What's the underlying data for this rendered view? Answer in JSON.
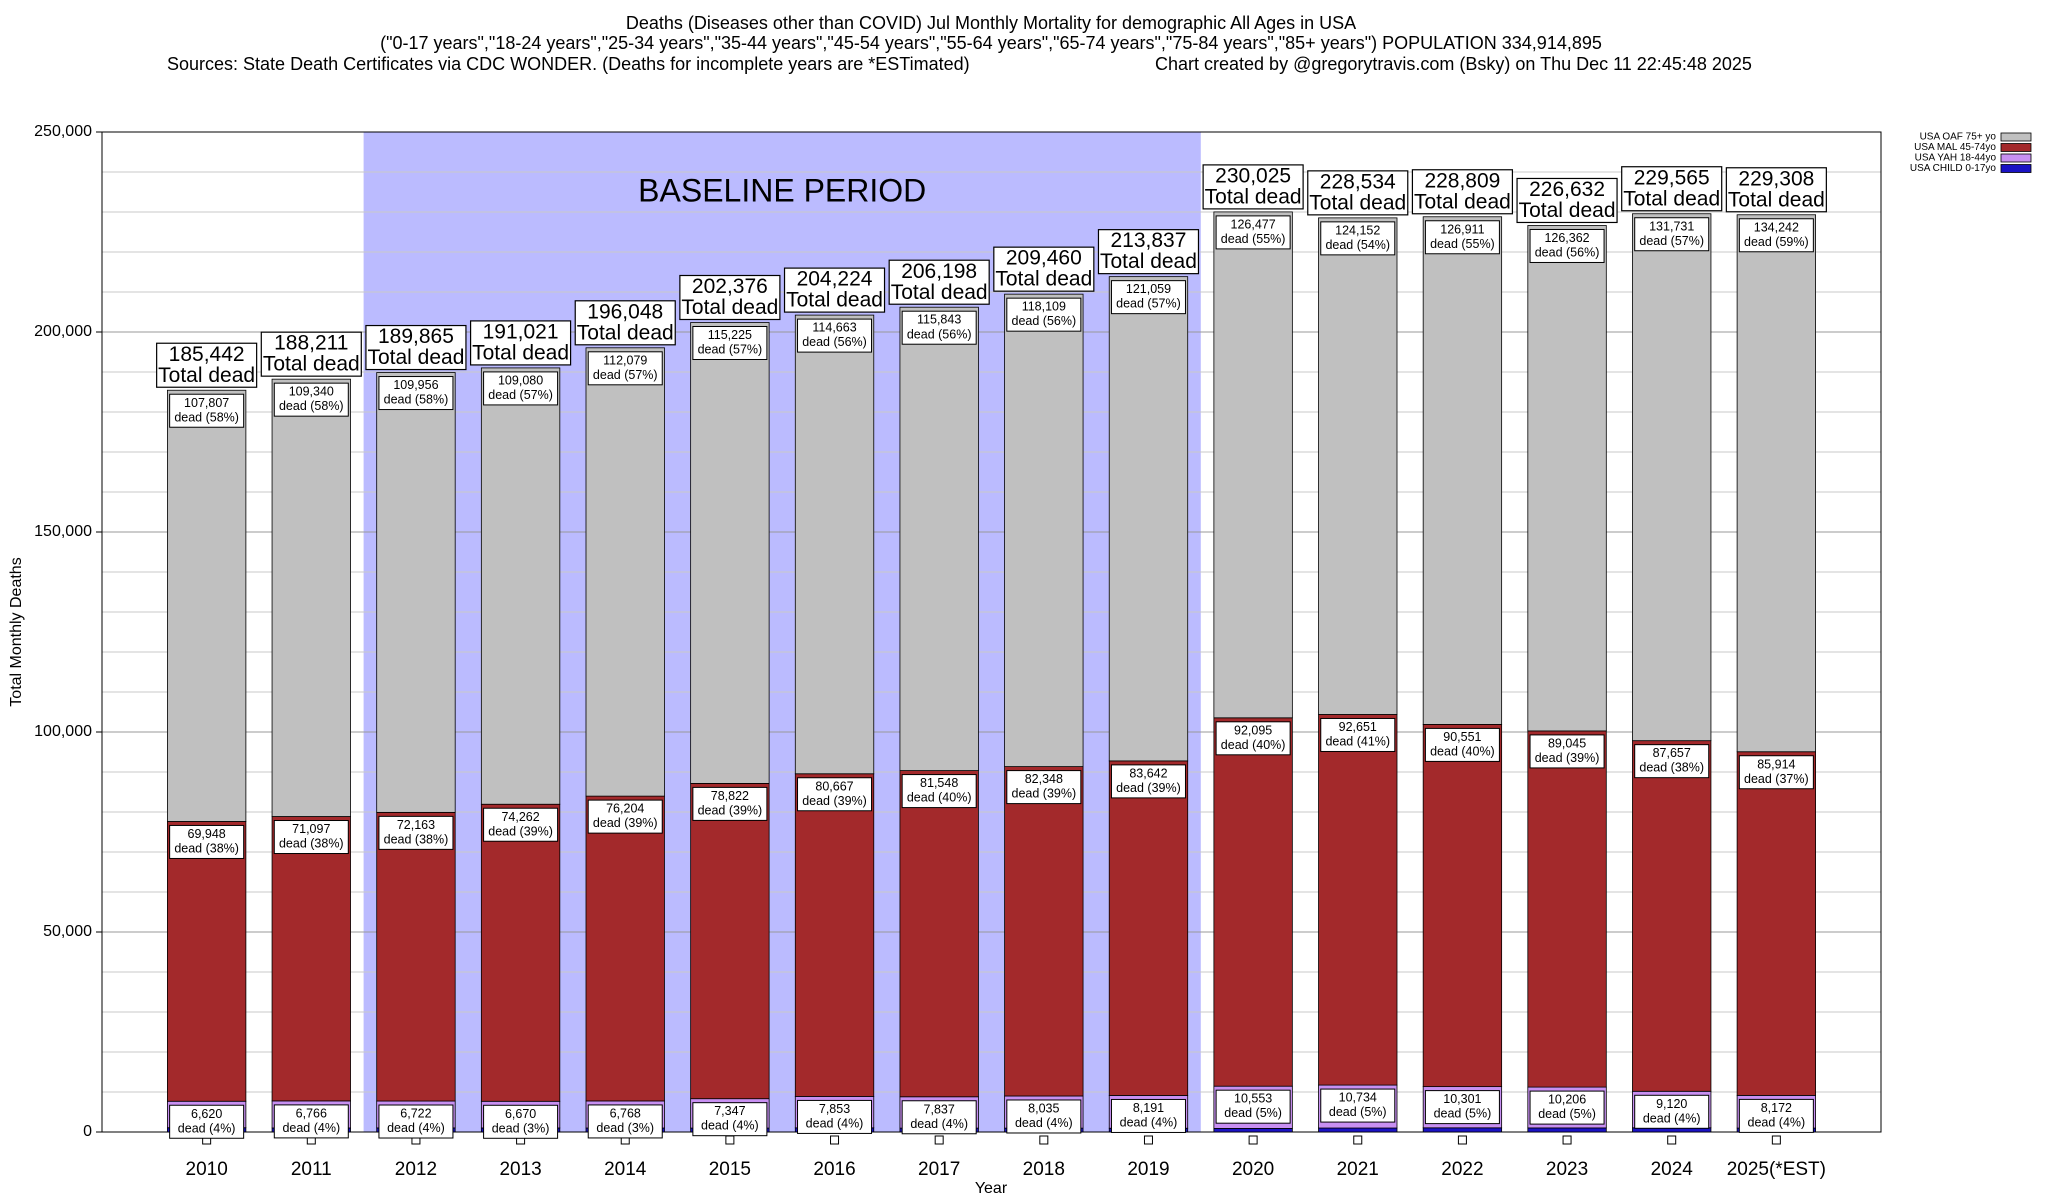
{
  "chart_data": {
    "type": "stacked_bar",
    "title": "Deaths (Diseases other than COVID) Jul Monthly Mortality for demographic All Ages in USA",
    "subtitle": "(\"0-17 years\",\"18-24 years\",\"25-34 years\",\"35-44 years\",\"45-54 years\",\"55-64 years\",\"65-74 years\",\"75-84 years\",\"85+ years\") POPULATION 334,914,895",
    "sources": "Sources: State Death Certificates via CDC WONDER. (Deaths for incomplete years are *ESTimated)",
    "credit": "Chart created by @gregorytravis.com (Bsky) on Thu Dec 11 22:45:48 2025",
    "x_label": "Year",
    "y_label": "Total Monthly Deaths",
    "categories": [
      "2010",
      "2011",
      "2012",
      "2013",
      "2014",
      "2015",
      "2016",
      "2017",
      "2018",
      "2019",
      "2020",
      "2021",
      "2022",
      "2023",
      "2024",
      "2025(*EST)"
    ],
    "series": [
      {
        "name": "USA CHILD 0-17yo",
        "color": "#1a12c4",
        "values": [
          1067,
          1008,
          1024,
          1009,
          997,
          982,
          1041,
          970,
          968,
          945,
          900,
          997,
          1046,
          1019,
          1057,
          980
        ]
      },
      {
        "name": "USA YAH 18-44yo",
        "color": "#c890f2",
        "values": [
          6620,
          6766,
          6722,
          6670,
          6768,
          7347,
          7853,
          7837,
          8035,
          8191,
          10553,
          10734,
          10301,
          10206,
          9120,
          8172
        ],
        "value_labels": [
          "6,620",
          "6,766",
          "6,722",
          "6,670",
          "6,768",
          "7,347",
          "7,853",
          "7,837",
          "8,035",
          "8,191",
          "10,553",
          "10,734",
          "10,301",
          "10,206",
          "9,120",
          "8,172"
        ],
        "share_labels": [
          "dead (4%)",
          "dead (4%)",
          "dead (4%)",
          "dead (3%)",
          "dead (3%)",
          "dead (4%)",
          "dead (4%)",
          "dead (4%)",
          "dead (4%)",
          "dead (4%)",
          "dead (5%)",
          "dead (5%)",
          "dead (5%)",
          "dead (5%)",
          "dead (4%)",
          "dead (4%)"
        ]
      },
      {
        "name": "USA MAL 45-74yo",
        "color": "#a3292b",
        "values": [
          69948,
          71097,
          72163,
          74262,
          76204,
          78822,
          80667,
          81548,
          82348,
          83642,
          92095,
          92651,
          90551,
          89045,
          87657,
          85914
        ],
        "value_labels": [
          "69,948",
          "71,097",
          "72,163",
          "74,262",
          "76,204",
          "78,822",
          "80,667",
          "81,548",
          "82,348",
          "83,642",
          "92,095",
          "92,651",
          "90,551",
          "89,045",
          "87,657",
          "85,914"
        ],
        "share_labels": [
          "dead (38%)",
          "dead (38%)",
          "dead (38%)",
          "dead (39%)",
          "dead (39%)",
          "dead (39%)",
          "dead (39%)",
          "dead (40%)",
          "dead (39%)",
          "dead (39%)",
          "dead (40%)",
          "dead (41%)",
          "dead (40%)",
          "dead (39%)",
          "dead (38%)",
          "dead (37%)"
        ]
      },
      {
        "name": "USA OAF 75+ yo",
        "color": "#c0c0c0",
        "values": [
          107807,
          109340,
          109956,
          109080,
          112079,
          115225,
          114663,
          115843,
          118109,
          121059,
          126477,
          124152,
          126911,
          126362,
          131731,
          134242
        ],
        "value_labels": [
          "107,807",
          "109,340",
          "109,956",
          "109,080",
          "112,079",
          "115,225",
          "114,663",
          "115,843",
          "118,109",
          "121,059",
          "126,477",
          "124,152",
          "126,911",
          "126,362",
          "131,731",
          "134,242"
        ],
        "share_labels": [
          "dead (58%)",
          "dead (58%)",
          "dead (58%)",
          "dead (57%)",
          "dead (57%)",
          "dead (57%)",
          "dead (56%)",
          "dead (56%)",
          "dead (56%)",
          "dead (57%)",
          "dead (55%)",
          "dead (54%)",
          "dead (55%)",
          "dead (56%)",
          "dead (57%)",
          "dead (59%)"
        ]
      }
    ],
    "totals": [
      185442,
      188211,
      189865,
      191021,
      196048,
      202376,
      204224,
      206198,
      209460,
      213837,
      230025,
      228534,
      228809,
      226632,
      229565,
      229308
    ],
    "total_value_labels": [
      "185,442",
      "188,211",
      "189,865",
      "191,021",
      "196,048",
      "202,376",
      "204,224",
      "206,198",
      "209,460",
      "213,837",
      "230,025",
      "228,534",
      "228,809",
      "226,632",
      "229,565",
      "229,308"
    ],
    "total_suffix": "Total dead",
    "baseline": {
      "label": "BASELINE PERIOD",
      "start": "2012",
      "end": "2019",
      "color": "#bbbbff"
    },
    "ylim": [
      0,
      250000
    ],
    "yticks": [
      {
        "value": 0,
        "label": "0"
      },
      {
        "value": 50000,
        "label": "50,000"
      },
      {
        "value": 100000,
        "label": "100,000"
      },
      {
        "value": 150000,
        "label": "150,000"
      },
      {
        "value": 200000,
        "label": "200,000"
      },
      {
        "value": 250000,
        "label": "250,000"
      }
    ],
    "yminor": [
      10000,
      20000,
      30000,
      40000,
      60000,
      70000,
      80000,
      90000,
      110000,
      120000,
      130000,
      140000,
      160000,
      170000,
      180000,
      190000,
      210000,
      220000,
      230000,
      240000
    ],
    "grid": true,
    "legend": "top-right"
  }
}
